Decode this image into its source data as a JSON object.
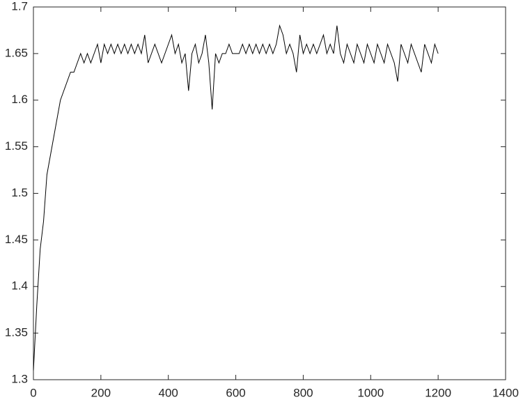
{
  "chart_data": {
    "type": "line",
    "x": [
      0,
      10,
      20,
      30,
      40,
      50,
      60,
      70,
      80,
      90,
      100,
      110,
      120,
      130,
      140,
      150,
      160,
      170,
      180,
      190,
      200,
      210,
      220,
      230,
      240,
      250,
      260,
      270,
      280,
      290,
      300,
      310,
      320,
      330,
      340,
      350,
      360,
      370,
      380,
      390,
      400,
      410,
      420,
      430,
      440,
      450,
      460,
      470,
      480,
      490,
      500,
      510,
      520,
      530,
      540,
      550,
      560,
      570,
      580,
      590,
      600,
      610,
      620,
      630,
      640,
      650,
      660,
      670,
      680,
      690,
      700,
      710,
      720,
      730,
      740,
      750,
      760,
      770,
      780,
      790,
      800,
      810,
      820,
      830,
      840,
      850,
      860,
      870,
      880,
      890,
      900,
      910,
      920,
      930,
      940,
      950,
      960,
      970,
      980,
      990,
      1000,
      1010,
      1020,
      1030,
      1040,
      1050,
      1060,
      1070,
      1080,
      1090,
      1100,
      1110,
      1120,
      1130,
      1140,
      1150,
      1160,
      1170,
      1180,
      1190,
      1200
    ],
    "series": [
      {
        "color": "#000000",
        "values": [
          1.31,
          1.38,
          1.44,
          1.47,
          1.52,
          1.54,
          1.56,
          1.58,
          1.6,
          1.61,
          1.62,
          1.63,
          1.63,
          1.64,
          1.65,
          1.64,
          1.65,
          1.64,
          1.65,
          1.66,
          1.64,
          1.66,
          1.65,
          1.66,
          1.65,
          1.66,
          1.65,
          1.66,
          1.65,
          1.66,
          1.65,
          1.66,
          1.65,
          1.67,
          1.64,
          1.65,
          1.66,
          1.65,
          1.64,
          1.65,
          1.66,
          1.67,
          1.65,
          1.66,
          1.64,
          1.65,
          1.61,
          1.65,
          1.66,
          1.64,
          1.65,
          1.67,
          1.64,
          1.59,
          1.65,
          1.64,
          1.65,
          1.65,
          1.66,
          1.65,
          1.65,
          1.65,
          1.66,
          1.65,
          1.66,
          1.65,
          1.66,
          1.65,
          1.66,
          1.65,
          1.66,
          1.65,
          1.66,
          1.68,
          1.67,
          1.65,
          1.66,
          1.65,
          1.63,
          1.67,
          1.65,
          1.66,
          1.65,
          1.66,
          1.65,
          1.66,
          1.67,
          1.65,
          1.66,
          1.65,
          1.68,
          1.65,
          1.64,
          1.66,
          1.65,
          1.64,
          1.66,
          1.65,
          1.64,
          1.66,
          1.65,
          1.64,
          1.66,
          1.65,
          1.64,
          1.66,
          1.65,
          1.64,
          1.62,
          1.66,
          1.65,
          1.64,
          1.66,
          1.65,
          1.64,
          1.63,
          1.66,
          1.65,
          1.64,
          1.66,
          1.65
        ]
      }
    ],
    "xlim": [
      0,
      1400
    ],
    "xticks": [
      0,
      200,
      400,
      600,
      800,
      1000,
      1200,
      1400
    ],
    "ylim": [
      1.3,
      1.7
    ],
    "yticks": [
      1.3,
      1.35,
      1.4,
      1.45,
      1.5,
      1.55,
      1.6,
      1.65,
      1.7
    ]
  }
}
